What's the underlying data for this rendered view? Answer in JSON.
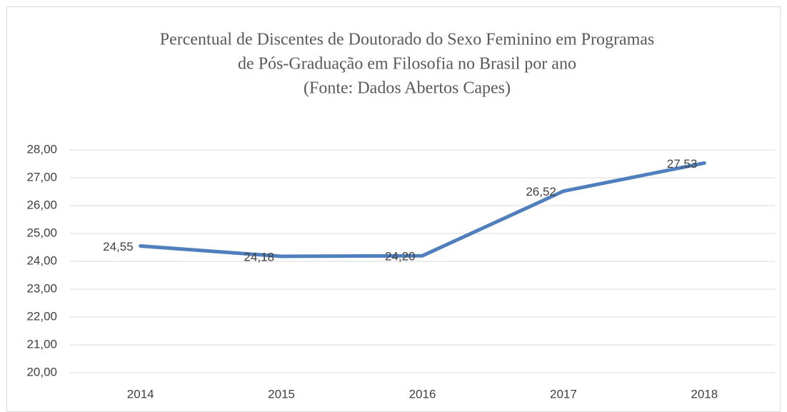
{
  "chart_data": {
    "type": "line",
    "title": [
      "Percentual de Discentes de Doutorado do Sexo Feminino em Programas",
      "de Pós-Graduação em Filosofia no Brasil por ano"
    ],
    "subtitle": "(Fonte: Dados Abertos Capes)",
    "categories": [
      "2014",
      "2015",
      "2016",
      "2017",
      "2018"
    ],
    "series": [
      {
        "name": null,
        "color": "#4f7fbc",
        "values": [
          24.55,
          24.18,
          24.2,
          26.52,
          27.53
        ],
        "value_labels": [
          "24,55",
          "24,18",
          "24,20",
          "26,52",
          "27,53"
        ]
      }
    ],
    "ylim": [
      20,
      28
    ],
    "yticks": [
      {
        "value": 20,
        "label": "20,00"
      },
      {
        "value": 21,
        "label": "21,00"
      },
      {
        "value": 22,
        "label": "22,00"
      },
      {
        "value": 23,
        "label": "23,00"
      },
      {
        "value": 24,
        "label": "24,00"
      },
      {
        "value": 25,
        "label": "25,00"
      },
      {
        "value": 26,
        "label": "26,00"
      },
      {
        "value": 27,
        "label": "27,00"
      },
      {
        "value": 28,
        "label": "28,00"
      }
    ],
    "grid": true
  }
}
